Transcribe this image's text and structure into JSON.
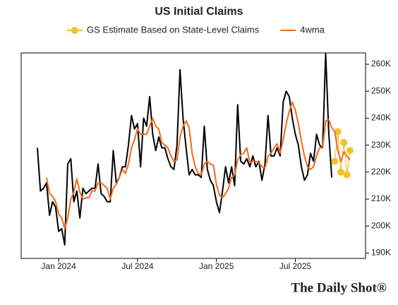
{
  "chart_data": {
    "type": "line",
    "title": "US Initial Claims",
    "watermark": "The Daily Shot®",
    "categories": [
      null,
      null,
      null,
      null,
      null,
      null,
      null,
      "Jan 2024",
      null,
      null,
      null,
      null,
      null,
      null,
      null,
      null,
      null,
      null,
      null,
      null,
      null,
      null,
      null,
      null,
      null,
      null,
      null,
      null,
      null,
      null,
      null,
      null,
      null,
      "Jul 2024",
      null,
      null,
      null,
      null,
      null,
      null,
      null,
      null,
      null,
      null,
      null,
      null,
      null,
      null,
      null,
      null,
      null,
      null,
      null,
      null,
      null,
      null,
      null,
      null,
      null,
      "Jan 2025",
      null,
      null,
      null,
      null,
      null,
      null,
      null,
      null,
      null,
      null,
      null,
      null,
      null,
      null,
      null,
      null,
      null,
      null,
      null,
      null,
      null,
      null,
      null,
      null,
      null,
      "Jul 2025",
      null,
      null,
      null,
      null,
      null,
      null,
      null,
      null,
      null,
      null,
      null,
      null,
      null,
      null,
      null,
      null,
      null,
      null
    ],
    "series": [
      {
        "color": "#000000",
        "values": [
          229,
          213,
          214,
          216,
          204,
          209,
          207,
          198,
          199,
          193,
          223,
          225,
          209,
          213,
          203,
          214,
          212,
          213,
          214,
          214,
          223,
          212,
          211,
          209,
          209,
          228,
          216,
          218,
          222,
          222,
          230,
          241,
          236,
          238,
          222,
          240,
          237,
          248,
          234,
          228,
          233,
          229,
          229,
          225,
          222,
          221,
          230,
          258,
          240,
          229,
          219,
          221,
          219,
          219,
          218,
          237,
          221,
          217,
          215,
          209,
          205,
          213,
          222,
          216,
          222,
          215,
          245,
          224,
          223,
          225,
          222,
          226,
          222,
          224,
          217,
          223,
          241,
          226,
          226,
          229,
          226,
          246,
          250,
          248,
          240,
          234,
          230,
          222,
          217,
          219,
          227,
          224,
          234,
          230,
          229,
          264,
          235,
          218,
          null,
          null,
          null,
          null,
          null,
          null
        ]
      },
      {
        "name": "GS Estimate Based on State-Level Claims",
        "color": "#f2c12e",
        "marker": "circle",
        "values": [
          null,
          null,
          null,
          null,
          null,
          null,
          null,
          null,
          null,
          null,
          null,
          null,
          null,
          null,
          null,
          null,
          null,
          null,
          null,
          null,
          null,
          null,
          null,
          null,
          null,
          null,
          null,
          null,
          null,
          null,
          null,
          null,
          null,
          null,
          null,
          null,
          null,
          null,
          null,
          null,
          null,
          null,
          null,
          null,
          null,
          null,
          null,
          null,
          null,
          null,
          null,
          null,
          null,
          null,
          null,
          null,
          null,
          null,
          null,
          null,
          null,
          null,
          null,
          null,
          null,
          null,
          null,
          null,
          null,
          null,
          null,
          null,
          null,
          null,
          null,
          null,
          null,
          null,
          null,
          null,
          null,
          null,
          null,
          null,
          null,
          null,
          null,
          null,
          null,
          null,
          null,
          null,
          null,
          null,
          null,
          null,
          null,
          null,
          224,
          235,
          220,
          231,
          219,
          228
        ]
      },
      {
        "name": "4wma",
        "color": "#f26b1d",
        "values": [
          null,
          null,
          null,
          218,
          212,
          211,
          209,
          204.5,
          203,
          199,
          203,
          210,
          212.5,
          217.5,
          212.5,
          210,
          210.5,
          210.5,
          213,
          213,
          216,
          216,
          215,
          214,
          210,
          214,
          215.5,
          218,
          221,
          219.5,
          223,
          229,
          232,
          236,
          234,
          234,
          234,
          237,
          240,
          237,
          236,
          231,
          230,
          229,
          226,
          224,
          224.5,
          233,
          237,
          239,
          236.5,
          227,
          222,
          219.5,
          219,
          223,
          224,
          223,
          222.5,
          215.5,
          211.5,
          210.5,
          212,
          214,
          218,
          219,
          224.5,
          226.5,
          227,
          229,
          223.5,
          224,
          224,
          223.5,
          222,
          221.5,
          226,
          227,
          229,
          230.5,
          227,
          232,
          238,
          242.5,
          246,
          243,
          238,
          231.5,
          226,
          222,
          221,
          222,
          226,
          229,
          229,
          239,
          239.5,
          236.5,
          235,
          228,
          224,
          227.5,
          226,
          224.5
        ]
      }
    ],
    "ylim": [
      188,
      264.2
    ],
    "yticks": [
      {
        "value": 190,
        "label": "190K"
      },
      {
        "value": 200,
        "label": "200K"
      },
      {
        "value": 210,
        "label": "210K"
      },
      {
        "value": 220,
        "label": "220K"
      },
      {
        "value": 230,
        "label": "230K"
      },
      {
        "value": 240,
        "label": "240K"
      },
      {
        "value": 250,
        "label": "250K"
      },
      {
        "value": 260,
        "label": "260K"
      }
    ],
    "y_axis_side": "right",
    "grid": false
  }
}
